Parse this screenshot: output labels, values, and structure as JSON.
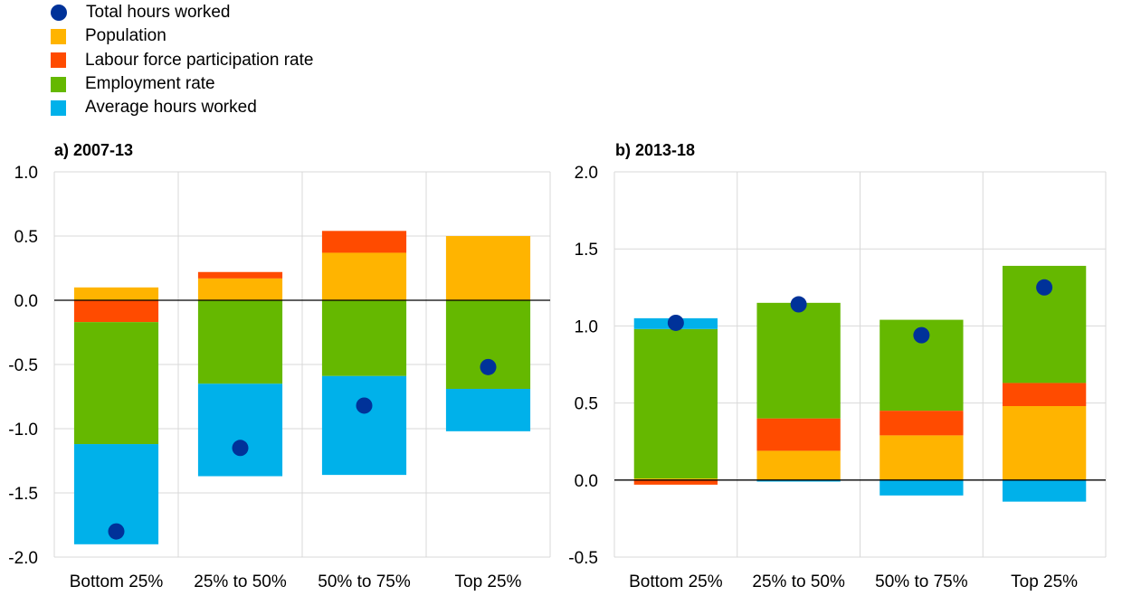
{
  "legend": [
    {
      "label": "Total hours worked",
      "color": "#003299",
      "marker": "dot"
    },
    {
      "label": "Population",
      "color": "#FFB400",
      "marker": "square"
    },
    {
      "label": "Labour force participation rate",
      "color": "#FF4B00",
      "marker": "square"
    },
    {
      "label": "Employment rate",
      "color": "#65B800",
      "marker": "square"
    },
    {
      "label": "Average hours worked",
      "color": "#00B1EA",
      "marker": "square"
    }
  ],
  "chart_data": [
    {
      "type": "bar",
      "stacked": true,
      "title": "a) 2007-13",
      "categories": [
        "Bottom 25%",
        "25% to 50%",
        "50% to 75%",
        "Top 25%"
      ],
      "ylim": [
        -2.0,
        1.0
      ],
      "yticks": [
        1.0,
        0.5,
        0.0,
        -0.5,
        -1.0,
        -1.5,
        -2.0
      ],
      "ytick_labels": [
        "1.0",
        "0.5",
        "0.0",
        "-0.5",
        "-1.0",
        "-1.5",
        "-2.0"
      ],
      "grid": true,
      "series": [
        {
          "name": "Population",
          "color": "#FFB400",
          "values": [
            0.1,
            0.17,
            0.37,
            0.5
          ]
        },
        {
          "name": "Labour force participation rate",
          "color": "#FF4B00",
          "values": [
            -0.17,
            0.05,
            0.17,
            0.0
          ]
        },
        {
          "name": "Employment rate",
          "color": "#65B800",
          "values": [
            -0.95,
            -0.65,
            -0.59,
            -0.69
          ]
        },
        {
          "name": "Average hours worked",
          "color": "#00B1EA",
          "values": [
            -0.78,
            -0.72,
            -0.77,
            -0.33
          ]
        }
      ],
      "total": {
        "name": "Total hours worked",
        "color": "#003299",
        "values": [
          -1.8,
          -1.15,
          -0.82,
          -0.52
        ]
      }
    },
    {
      "type": "bar",
      "stacked": true,
      "title": "b) 2013-18",
      "categories": [
        "Bottom 25%",
        "25% to 50%",
        "50% to 75%",
        "Top 25%"
      ],
      "ylim": [
        -0.5,
        2.0
      ],
      "yticks": [
        2.0,
        1.5,
        1.0,
        0.5,
        0.0,
        -0.5
      ],
      "ytick_labels": [
        "2.0",
        "1.5",
        "1.0",
        "0.5",
        "0.0",
        "-0.5"
      ],
      "grid": true,
      "series": [
        {
          "name": "Population",
          "color": "#FFB400",
          "values": [
            0.01,
            0.19,
            0.29,
            0.48
          ]
        },
        {
          "name": "Labour force participation rate",
          "color": "#FF4B00",
          "values": [
            -0.03,
            0.21,
            0.16,
            0.15
          ]
        },
        {
          "name": "Employment rate",
          "color": "#65B800",
          "values": [
            0.97,
            0.75,
            0.59,
            0.76
          ]
        },
        {
          "name": "Average hours worked",
          "color": "#00B1EA",
          "values": [
            0.07,
            -0.01,
            -0.1,
            -0.14
          ]
        }
      ],
      "total": {
        "name": "Total hours worked",
        "color": "#003299",
        "values": [
          1.02,
          1.14,
          0.94,
          1.25
        ]
      }
    }
  ]
}
